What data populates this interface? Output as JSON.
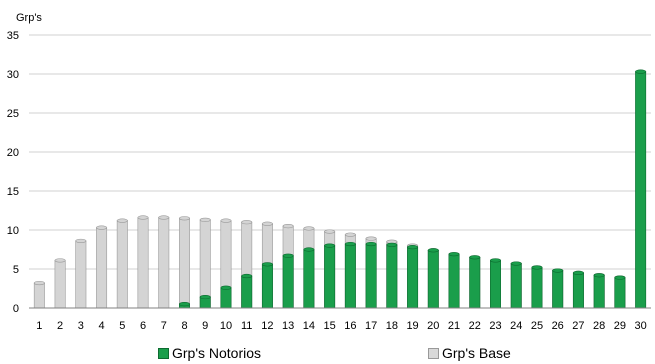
{
  "chart_data": {
    "type": "bar",
    "ylabel": "Grp's",
    "ylim": [
      0,
      35
    ],
    "yticks": [
      0,
      5,
      10,
      15,
      20,
      25,
      30,
      35
    ],
    "grid": true,
    "legend_position": "bottom",
    "categories": [
      "1",
      "2",
      "3",
      "4",
      "5",
      "6",
      "7",
      "8",
      "9",
      "10",
      "11",
      "12",
      "13",
      "14",
      "15",
      "16",
      "17",
      "18",
      "19",
      "20",
      "21",
      "22",
      "23",
      "24",
      "25",
      "26",
      "27",
      "28",
      "29",
      "30"
    ],
    "series": [
      {
        "name": "Grp's Notorios",
        "color": "#1a9e4b",
        "values": [
          0,
          0,
          0,
          0,
          0,
          0,
          0,
          0.5,
          1.4,
          2.6,
          4.1,
          5.6,
          6.7,
          7.5,
          8.0,
          8.2,
          8.2,
          8.1,
          7.8,
          7.4,
          6.9,
          6.5,
          6.1,
          5.7,
          5.2,
          4.8,
          4.5,
          4.2,
          3.9,
          30.3
        ]
      },
      {
        "name": "Grp's Base",
        "color": "#d9d9d9",
        "values": [
          3.2,
          6.1,
          8.6,
          10.3,
          11.2,
          11.6,
          11.6,
          11.5,
          11.3,
          11.2,
          11.0,
          10.8,
          10.5,
          10.2,
          9.8,
          9.4,
          8.9,
          8.5,
          8.0,
          7.4,
          6.9,
          6.5,
          6.1,
          5.7,
          5.2,
          4.8,
          4.5,
          4.2,
          3.9,
          0
        ]
      }
    ]
  }
}
